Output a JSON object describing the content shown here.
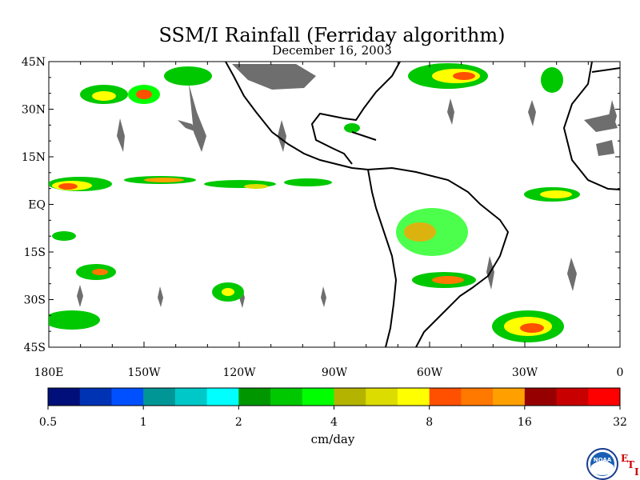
{
  "title": "SSM/I Rainfall (Ferriday algorithm)",
  "subtitle": "December 16, 2003",
  "map": {
    "lat_range": [
      -45,
      45
    ],
    "lon_range": [
      -180,
      0
    ],
    "lat_labels": [
      "45N",
      "30N",
      "15N",
      "EQ",
      "15S",
      "30S",
      "45S"
    ],
    "lat_values": [
      45,
      30,
      15,
      0,
      -15,
      -30,
      -45
    ],
    "lon_labels": [
      "180E",
      "150W",
      "120W",
      "90W",
      "60W",
      "30W",
      "0"
    ],
    "lon_values": [
      -180,
      -150,
      -120,
      -90,
      -60,
      -30,
      0
    ]
  },
  "colorbar": {
    "unit": "cm/day",
    "tick_labels": [
      "0.5",
      "1",
      "2",
      "4",
      "8",
      "16",
      "32"
    ],
    "colors": [
      "#000f7a",
      "#0032b4",
      "#0050ff",
      "#009696",
      "#00c8c8",
      "#00ffff",
      "#009600",
      "#00c800",
      "#00ff00",
      "#b4b400",
      "#dcdc00",
      "#ffff00",
      "#ff5000",
      "#ff7800",
      "#ffa000",
      "#960000",
      "#c80000",
      "#ff0000"
    ]
  },
  "logo": {
    "text": "NOAA",
    "letters": [
      "E",
      "T",
      "I"
    ]
  }
}
